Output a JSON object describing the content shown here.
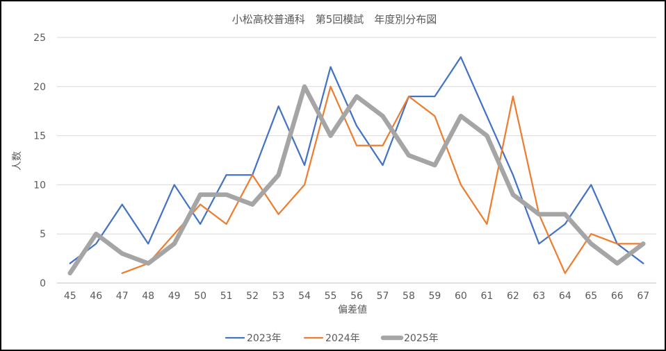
{
  "chart_data": {
    "type": "line",
    "title": "小松高校普通科　第5回模試　年度別分布図",
    "xlabel": "偏差値",
    "ylabel": "人数",
    "ylim": [
      0,
      25
    ],
    "yticks": [
      "0",
      "5",
      "10",
      "15",
      "20",
      "25"
    ],
    "grid": true,
    "legend_position": "bottom",
    "categories": [
      "45",
      "46",
      "47",
      "48",
      "49",
      "50",
      "51",
      "52",
      "53",
      "54",
      "55",
      "56",
      "57",
      "58",
      "59",
      "60",
      "61",
      "62",
      "63",
      "64",
      "65",
      "66",
      "67"
    ],
    "series": [
      {
        "name": "2023年",
        "color": "#4472C4",
        "values": [
          2,
          4,
          8,
          4,
          10,
          6,
          11,
          11,
          18,
          12,
          22,
          16,
          12,
          19,
          19,
          23,
          17,
          11,
          4,
          6,
          10,
          4,
          2
        ]
      },
      {
        "name": "2024年",
        "color": "#ED7D31",
        "values": [
          null,
          null,
          1,
          2,
          5,
          8,
          6,
          11,
          7,
          10,
          20,
          14,
          14,
          19,
          17,
          10,
          6,
          19,
          7,
          1,
          5,
          4,
          4
        ]
      },
      {
        "name": "2025年",
        "color": "#A5A5A5",
        "values": [
          1,
          5,
          3,
          2,
          4,
          9,
          9,
          8,
          11,
          20,
          15,
          19,
          17,
          13,
          12,
          17,
          15,
          9,
          7,
          7,
          4,
          2,
          4
        ]
      }
    ]
  }
}
